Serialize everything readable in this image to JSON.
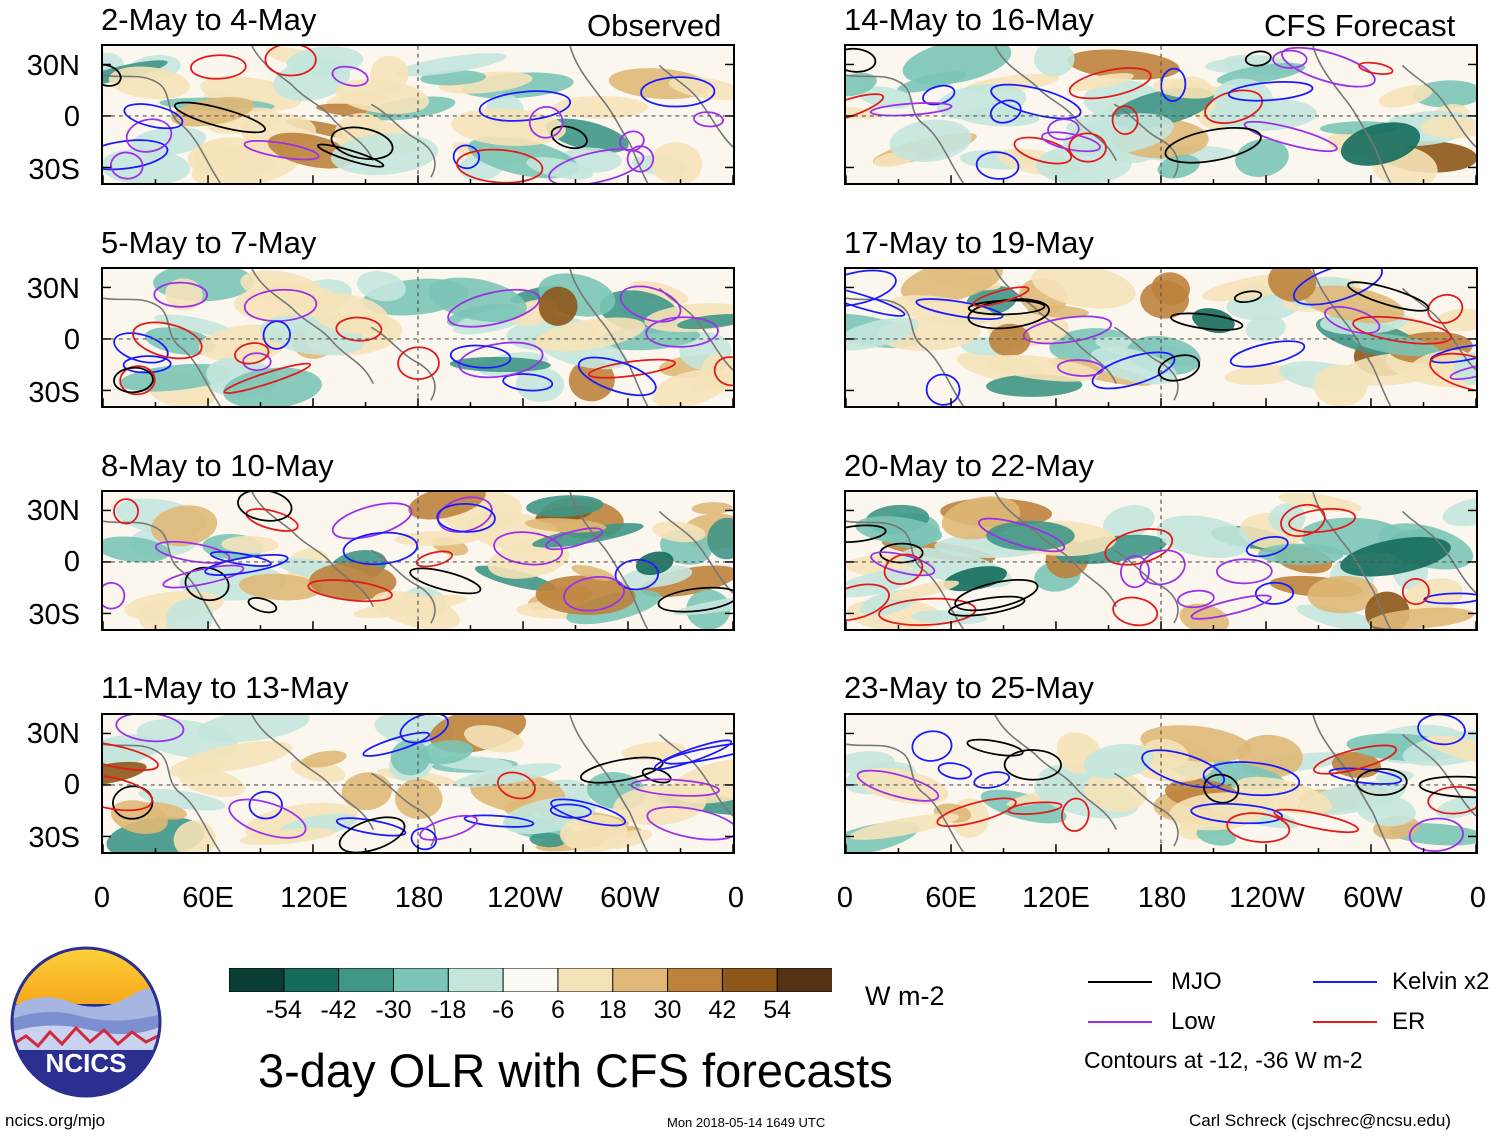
{
  "header": {
    "observed_label": "Observed",
    "forecast_label": "CFS Forecast"
  },
  "panels": [
    {
      "title": "2-May to 4-May"
    },
    {
      "title": "5-May to 7-May"
    },
    {
      "title": "8-May to 10-May"
    },
    {
      "title": "11-May to 13-May"
    },
    {
      "title": "14-May to 16-May"
    },
    {
      "title": "17-May to 19-May"
    },
    {
      "title": "20-May to 22-May"
    },
    {
      "title": "23-May to 25-May"
    }
  ],
  "axes": {
    "lat_labels": [
      "30N",
      "0",
      "30S"
    ],
    "lon_labels": [
      "0",
      "60E",
      "120E",
      "180",
      "120W",
      "60W",
      "0"
    ]
  },
  "colorbar": {
    "labels": [
      "-54",
      "-42",
      "-30",
      "-18",
      "-6",
      "6",
      "18",
      "30",
      "42",
      "54"
    ],
    "colors": [
      "#0a3d33",
      "#146b5c",
      "#3f9687",
      "#7bc4b6",
      "#c4e6dd",
      "#fbfaf5",
      "#f5e2b8",
      "#dfb877",
      "#bd823c",
      "#8c5718",
      "#563214"
    ],
    "unit": "W m-2"
  },
  "legend": {
    "items": [
      {
        "label": "MJO",
        "color": "#000000"
      },
      {
        "label": "Kelvin x2",
        "color": "#1a1aff"
      },
      {
        "label": "Low",
        "color": "#9b30e8"
      },
      {
        "label": "ER",
        "color": "#e21a1a"
      }
    ],
    "contour_note": "Contours at -12, -36 W m-2"
  },
  "main_title": "3-day OLR with CFS forecasts",
  "logo": {
    "text": "NCICS"
  },
  "footer": {
    "url": "ncics.org/mjo",
    "timestamp": "Mon 2018-05-14 1649 UTC",
    "author": "Carl Schreck (cjschrec@ncsu.edu)"
  }
}
